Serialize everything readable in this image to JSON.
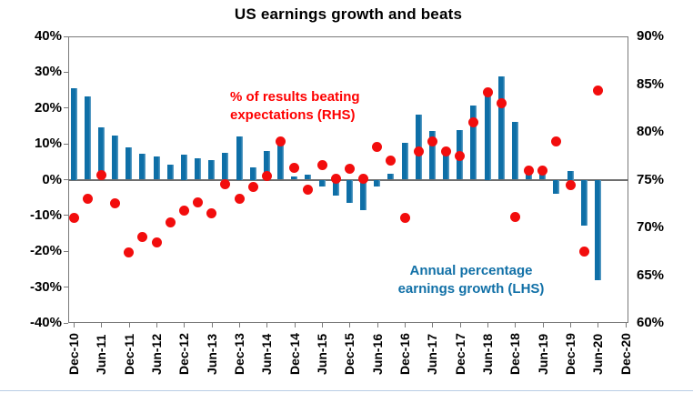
{
  "title": "US earnings growth and beats",
  "annotations": {
    "rhs_label_line1": "% of results beating",
    "rhs_label_line2": "expectations (RHS)",
    "lhs_label_line1": "Annual percentage",
    "lhs_label_line2": "earnings growth (LHS)"
  },
  "colors": {
    "bar_fill": "#0e6fa7",
    "bar_edge_light": "#68a5c9",
    "dot_fill": "#f20d0d",
    "rhs_text": "#fe0000",
    "lhs_text": "#1170a7",
    "axis_border": "#7a7a7a",
    "zero_line": "#6e6e6e",
    "tick_text": "#000000"
  },
  "chart_data": {
    "type": "combo",
    "title": "US earnings growth and beats",
    "grid": false,
    "legend_position": "in-plot text annotations",
    "x": [
      "Dec-10",
      "Mar-11",
      "Jun-11",
      "Sep-11",
      "Dec-11",
      "Mar-12",
      "Jun-12",
      "Sep-12",
      "Dec-12",
      "Mar-13",
      "Jun-13",
      "Sep-13",
      "Dec-13",
      "Mar-14",
      "Jun-14",
      "Sep-14",
      "Dec-14",
      "Mar-15",
      "Jun-15",
      "Sep-15",
      "Dec-15",
      "Mar-16",
      "Jun-16",
      "Sep-16",
      "Dec-16",
      "Mar-17",
      "Jun-17",
      "Sep-17",
      "Dec-17",
      "Mar-18",
      "Jun-18",
      "Sep-18",
      "Dec-18",
      "Mar-19",
      "Jun-19",
      "Sep-19",
      "Dec-19",
      "Mar-20",
      "Jun-20"
    ],
    "series": [
      {
        "name": "Annual percentage earnings growth (LHS)",
        "type": "bar",
        "axis": "left",
        "color": "#0e6fa7",
        "values": [
          25.5,
          23.3,
          14.6,
          12.3,
          8.9,
          7.2,
          6.4,
          4.2,
          7,
          5.9,
          5.4,
          7.4,
          12,
          3.5,
          8,
          10.4,
          0.8,
          1.4,
          -2,
          -4.4,
          -6.6,
          -8.5,
          -2,
          1.6,
          10.2,
          18.2,
          13.6,
          8.8,
          13.9,
          20.8,
          24,
          28.9,
          16.2,
          3.1,
          3.1,
          -4,
          2.5,
          -12.8,
          -28
        ]
      },
      {
        "name": "% of results beating expectations (RHS)",
        "type": "scatter",
        "axis": "right",
        "color": "#f20d0d",
        "values": [
          71,
          73,
          75.5,
          72.5,
          67.4,
          69,
          68.4,
          70.5,
          71.8,
          72.6,
          71.5,
          74.5,
          73,
          74.2,
          75.4,
          79,
          76.2,
          74,
          76.5,
          75.1,
          76.1,
          75.1,
          78.4,
          77,
          71,
          78,
          79,
          78,
          77.5,
          81,
          84.1,
          83,
          71.1,
          76,
          76,
          79,
          74.4,
          67.5,
          84.3
        ]
      }
    ],
    "left_axis": {
      "min": -40,
      "max": 40,
      "tick_step": 10,
      "tick_labels": [
        "40%",
        "30%",
        "20%",
        "10%",
        "0%",
        "-10%",
        "-20%",
        "-30%",
        "-40%"
      ]
    },
    "right_axis": {
      "min": 60,
      "max": 90,
      "tick_step": 5,
      "tick_labels": [
        "90%",
        "85%",
        "80%",
        "75%",
        "70%",
        "65%",
        "60%"
      ]
    },
    "x_axis": {
      "tick_labels": [
        "Dec-10",
        "Jun-11",
        "Dec-11",
        "Jun-12",
        "Dec-12",
        "Jun-13",
        "Dec-13",
        "Jun-14",
        "Dec-14",
        "Jun-15",
        "Dec-15",
        "Jun-16",
        "Dec-16",
        "Jun-17",
        "Dec-17",
        "Jun-18",
        "Dec-18",
        "Jun-19",
        "Dec-19",
        "Jun-20",
        "Dec-20"
      ]
    }
  }
}
